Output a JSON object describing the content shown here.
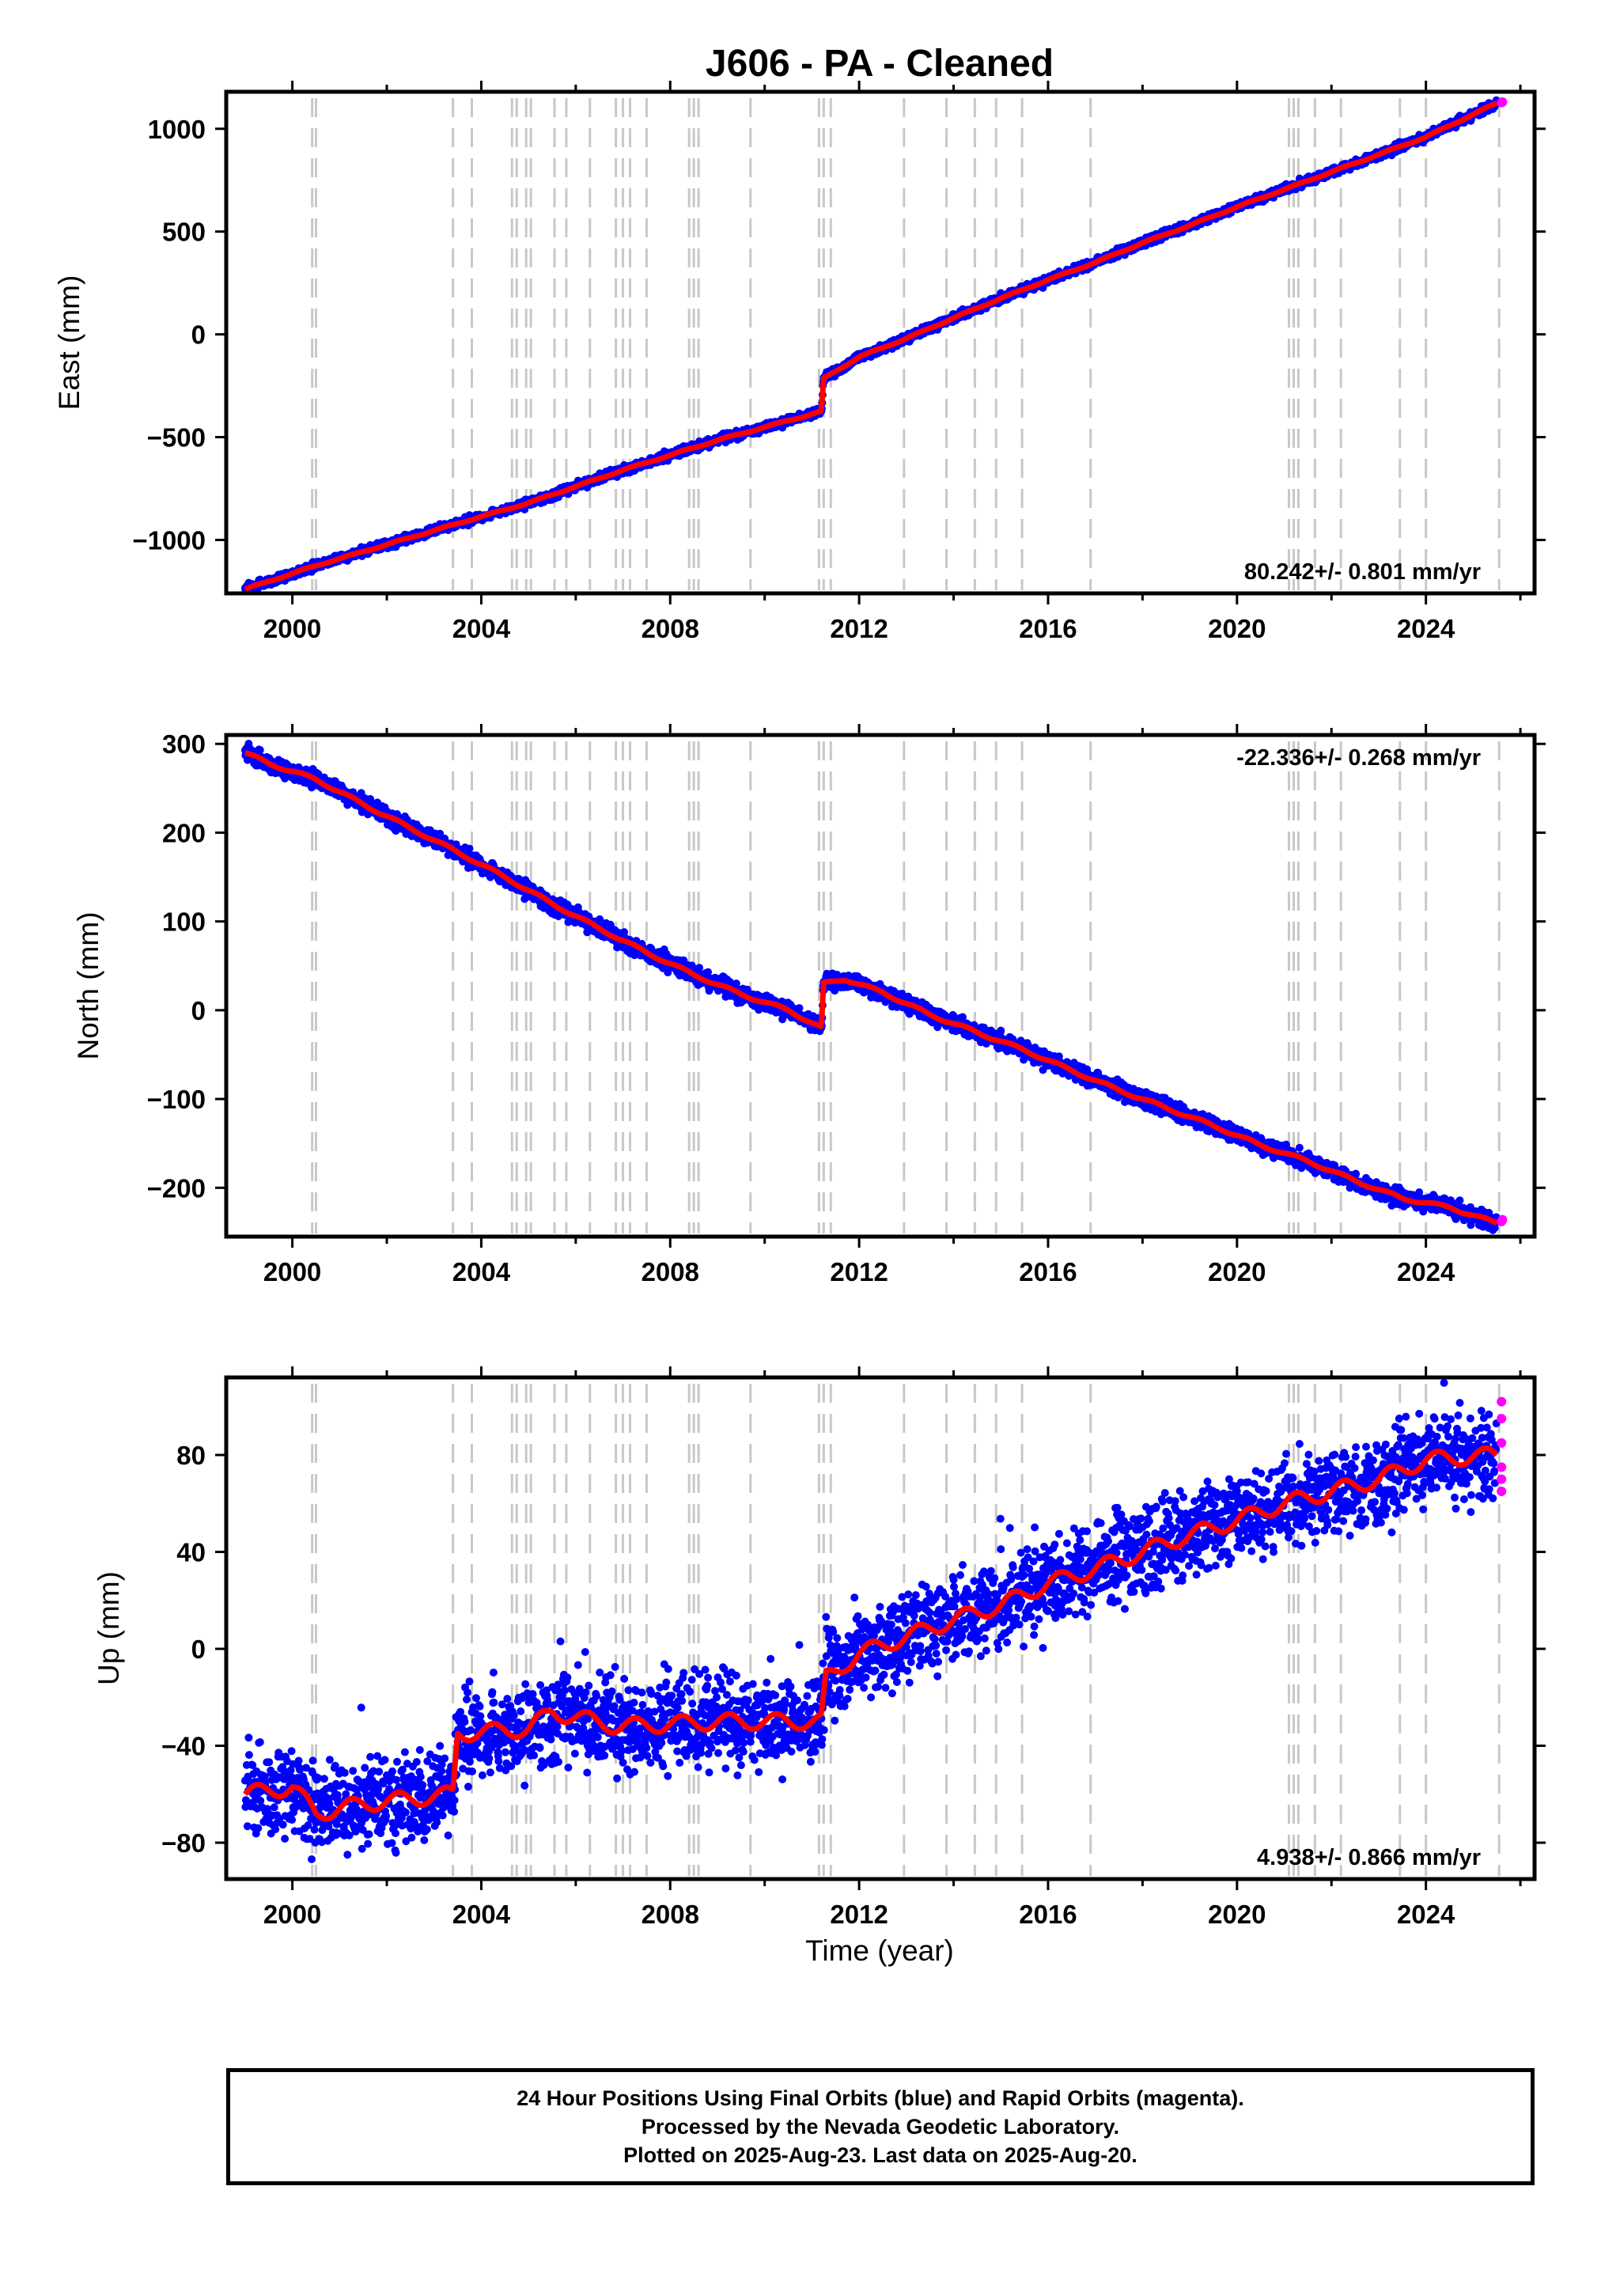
{
  "title": "J606  - PA - Cleaned",
  "xlabel": "Time (year)",
  "caption": [
    "24 Hour Positions Using Final Orbits (blue) and Rapid Orbits (magenta).",
    "Processed by the Nevada Geodetic Laboratory.",
    "Plotted on 2025-Aug-23. Last data on 2025-Aug-20."
  ],
  "colors": {
    "final_orbits": "#0000ff",
    "rapid_orbits": "#ff00ff",
    "model": "#ff0000",
    "step_lines": "#c8c8c8"
  },
  "step_lines_years": [
    2000.42,
    2000.5,
    2003.4,
    2003.8,
    2004.65,
    2004.75,
    2004.95,
    2005.05,
    2005.55,
    2005.8,
    2006.3,
    2006.85,
    2007.0,
    2007.15,
    2007.5,
    2008.4,
    2008.5,
    2008.6,
    2009.7,
    2011.15,
    2011.25,
    2011.4,
    2012.95,
    2013.85,
    2014.45,
    2014.9,
    2015.45,
    2016.9,
    2021.1,
    2021.2,
    2021.3,
    2021.65,
    2022.2,
    2023.45,
    2024.0,
    2025.55
  ],
  "chart_data": [
    {
      "type": "scatter",
      "component": "east",
      "ylabel": "East (mm)",
      "xlim": [
        1998.6,
        2026.3
      ],
      "ylim": [
        -1260,
        1180
      ],
      "xticks": [
        2000,
        2004,
        2008,
        2012,
        2016,
        2020,
        2024
      ],
      "yticks": [
        -1000,
        -500,
        0,
        500,
        1000
      ],
      "velocity_label": "80.242+/- 0.801 mm/yr",
      "velocity_label_position": "bottom-right",
      "series": [
        {
          "name": "Final Orbits",
          "x": [
            1999.0,
            2000.5,
            2003.5,
            2005.0,
            2007.0,
            2009.0,
            2011.2,
            2011.25,
            2012.0,
            2013.0,
            2014.0,
            2015.0,
            2016.0,
            2017.0,
            2018.0,
            2019.0,
            2020.0,
            2021.0,
            2022.0,
            2023.0,
            2024.0,
            2025.5
          ],
          "y": [
            -1240,
            -1125,
            -920,
            -820,
            -660,
            -515,
            -375,
            -215,
            -110,
            -20,
            80,
            175,
            265,
            350,
            445,
            530,
            620,
            705,
            790,
            875,
            960,
            1125
          ]
        },
        {
          "name": "Rapid Orbits",
          "x": [
            2025.6,
            2025.62
          ],
          "y": [
            1128,
            1130
          ]
        }
      ]
    },
    {
      "type": "scatter",
      "component": "north",
      "ylabel": "North (mm)",
      "xlim": [
        1998.6,
        2026.3
      ],
      "ylim": [
        -255,
        310
      ],
      "xticks": [
        2000,
        2004,
        2008,
        2012,
        2016,
        2020,
        2024
      ],
      "yticks": [
        -200,
        -100,
        0,
        100,
        200,
        300
      ],
      "velocity_label": "-22.336+/- 0.268 mm/yr",
      "velocity_label_position": "top-right",
      "series": [
        {
          "name": "Final Orbits",
          "x": [
            1999.0,
            1999.5,
            2000.5,
            2001.5,
            2002.5,
            2003.5,
            2004.5,
            2005.5,
            2006.5,
            2007.5,
            2008.5,
            2009.5,
            2010.5,
            2011.2,
            2011.25,
            2011.7,
            2012.5,
            2013.5,
            2014.5,
            2015.5,
            2016.5,
            2017.5,
            2018.5,
            2019.5,
            2020.5,
            2021.5,
            2022.5,
            2023.5,
            2024.5,
            2025.5
          ],
          "y": [
            290,
            278,
            260,
            232,
            205,
            178,
            150,
            120,
            92,
            65,
            40,
            18,
            0,
            -20,
            30,
            35,
            20,
            -5,
            -25,
            -45,
            -68,
            -90,
            -110,
            -130,
            -152,
            -170,
            -192,
            -212,
            -222,
            -240
          ]
        },
        {
          "name": "Rapid Orbits",
          "x": [
            2025.6,
            2025.62
          ],
          "y": [
            -238,
            -236
          ]
        }
      ]
    },
    {
      "type": "scatter",
      "component": "up",
      "ylabel": "Up (mm)",
      "xlim": [
        1998.6,
        2026.3
      ],
      "ylim": [
        -95,
        112
      ],
      "xticks": [
        2000,
        2004,
        2008,
        2012,
        2016,
        2020,
        2024
      ],
      "yticks": [
        -80,
        -40,
        0,
        40,
        80
      ],
      "velocity_label": "4.938+/- 0.866 mm/yr",
      "velocity_label_position": "bottom-right",
      "series": [
        {
          "name": "Final Orbits",
          "x": [
            1999.0,
            2000.0,
            2000.5,
            2001.5,
            2003.4,
            2003.5,
            2005.0,
            2005.5,
            2006.9,
            2008.0,
            2009.0,
            2010.0,
            2011.2,
            2011.3,
            2012.0,
            2013.0,
            2014.0,
            2015.0,
            2016.0,
            2017.0,
            2018.0,
            2019.0,
            2020.0,
            2021.0,
            2022.0,
            2023.0,
            2024.0,
            2025.5
          ],
          "y": [
            -60,
            -57,
            -68,
            -64,
            -60,
            -35,
            -33,
            -26,
            -32,
            -31,
            -30,
            -30,
            -30,
            -12,
            -2,
            5,
            12,
            18,
            27,
            33,
            40,
            47,
            53,
            60,
            65,
            70,
            78,
            80
          ]
        },
        {
          "name": "Rapid Orbits",
          "x": [
            2025.6,
            2025.6,
            2025.6,
            2025.6,
            2025.6,
            2025.6
          ],
          "y": [
            65,
            70,
            75,
            85,
            95,
            102
          ]
        }
      ]
    }
  ]
}
